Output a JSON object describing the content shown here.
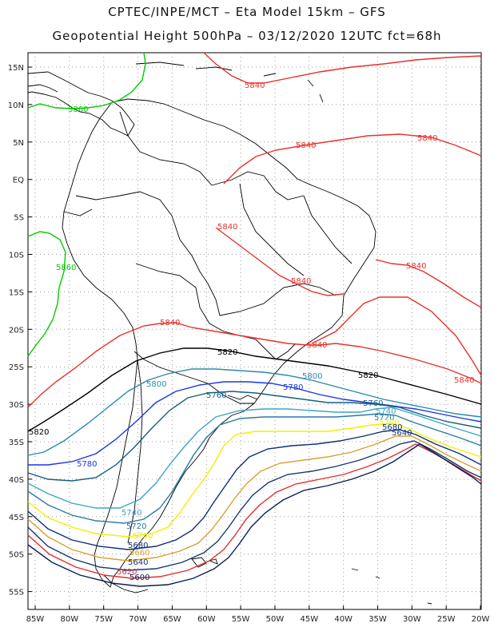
{
  "title_line1": "CPTEC/INPE/MCT –  Eta Model 15km – GFS",
  "title_line2": "Geopotential Height 500hPa – 03/12/2020 12UTC fct=68h",
  "lat_labels": [
    "15N",
    "10N",
    "5N",
    "EQ",
    "5S",
    "10S",
    "15S",
    "20S",
    "25S",
    "30S",
    "35S",
    "40S",
    "45S",
    "50S",
    "55S"
  ],
  "lon_labels": [
    "85W",
    "80W",
    "75W",
    "70W",
    "65W",
    "60W",
    "55W",
    "50W",
    "45W",
    "40W",
    "35W",
    "30W",
    "25W",
    "20W"
  ],
  "colors": {
    "c5860": "#00cc00",
    "c5840": "#e8302a",
    "c5820": "#000000",
    "c5800": "#2a8ab0",
    "c5780": "#1a36e6",
    "c5760": "#155e80",
    "c5740": "#3aa6c8",
    "c5720": "#2a7aa8",
    "c5700": "#f0f000",
    "c5680": "#0c2f7a",
    "c5660": "#d8a030",
    "c5640": "#163870",
    "c5620": "#e03030",
    "c5600": "#0a1e58",
    "grid": "#9a9a9a",
    "coast": "#000000"
  },
  "contours": [
    {
      "value": "5860",
      "color_key": "c5860"
    },
    {
      "value": "5840",
      "color_key": "c5840"
    },
    {
      "value": "5820",
      "color_key": "c5820"
    },
    {
      "value": "5800",
      "color_key": "c5800"
    },
    {
      "value": "5780",
      "color_key": "c5780"
    },
    {
      "value": "5760",
      "color_key": "c5760"
    },
    {
      "value": "5740",
      "color_key": "c5740"
    },
    {
      "value": "5720",
      "color_key": "c5720"
    },
    {
      "value": "5700",
      "color_key": "c5700"
    },
    {
      "value": "5680",
      "color_key": "c5680"
    },
    {
      "value": "5660",
      "color_key": "c5660"
    },
    {
      "value": "5640",
      "color_key": "c5640"
    },
    {
      "value": "5620",
      "color_key": "c5620"
    },
    {
      "value": "5600",
      "color_key": "c5600"
    }
  ]
}
